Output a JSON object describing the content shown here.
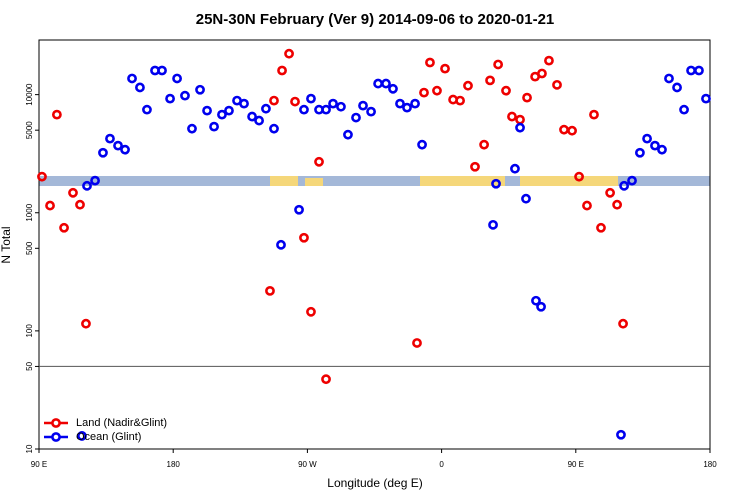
{
  "chart_data": {
    "type": "scatter",
    "title": "25N-30N February (Ver 9)   2014-09-06 to 2020-01-21",
    "x_label": "Longitude (deg E)",
    "y_label": "N Total",
    "log_y": true,
    "legend": "lower left",
    "hline": 50,
    "xlim": [
      90,
      540
    ],
    "ylim": [
      10,
      29000
    ],
    "xticks": [
      {
        "value": 90,
        "label": "90 E"
      },
      180,
      {
        "value": 270,
        "label": "90 W"
      },
      {
        "value": 360,
        "label": "0"
      },
      {
        "value": 450,
        "label": "90 E"
      },
      {
        "value": 540,
        "label": "180"
      }
    ],
    "yticks": [
      10,
      50,
      100,
      500,
      1000,
      5000,
      10000
    ],
    "series": [
      {
        "name": "Land (Nadir&Glint)",
        "color": "#ee0000",
        "x": [
          92,
          97.4,
          102,
          106.8,
          112.8,
          117.5,
          121.5,
          244.9,
          247.6,
          253,
          257.7,
          261.7,
          267.7,
          272.4,
          277.8,
          282.5,
          343.5,
          348.2,
          352.2,
          356.9,
          362.3,
          367.7,
          372.4,
          377.7,
          382.4,
          388.5,
          392.5,
          397.9,
          403.2,
          407.2,
          412.6,
          417.3,
          422.7,
          427.3,
          432,
          437.4,
          442.1,
          447.5,
          452.2,
          457.5,
          462.2,
          466.9,
          473,
          477.7,
          481.7
        ],
        "values": [
          2020,
          1150,
          6770,
          746,
          1475,
          1170,
          115,
          218,
          8900,
          16000,
          22200,
          8730,
          614,
          145,
          2700,
          39,
          79,
          10400,
          18700,
          10800,
          16600,
          9080,
          8900,
          11900,
          2450,
          3770,
          13200,
          18000,
          10800,
          6520,
          6140,
          9430,
          14200,
          15100,
          19400,
          12100,
          5050,
          4950,
          2020,
          1150,
          6770,
          746,
          1475,
          1170,
          115
        ]
      },
      {
        "name": "Ocean (Glint)",
        "color": "#0000ee",
        "x": [
          118.8,
          122.2,
          127.6,
          132.9,
          137.6,
          143,
          147.7,
          152.4,
          157.7,
          162.4,
          167.8,
          172.5,
          177.9,
          182.6,
          187.9,
          192.6,
          198,
          202.7,
          207.4,
          212.7,
          217.4,
          222.8,
          227.5,
          232.9,
          237.6,
          242.2,
          247.6,
          252.3,
          264.4,
          272.4,
          267.7,
          277.8,
          282.5,
          287.2,
          292.5,
          297.2,
          302.6,
          307.3,
          312.7,
          317.4,
          322.7,
          327.4,
          332.1,
          336.8,
          342.2,
          346.9,
          394.5,
          396.5,
          409.2,
          412.6,
          416.6,
          423.3,
          426.7,
          480.3,
          482.4,
          487.7,
          493,
          497.8,
          503.1,
          507.8,
          512.5,
          517.9,
          522.6,
          527.3,
          532.6,
          537.3
        ],
        "values": [
          12.9,
          1690,
          1870,
          3220,
          4240,
          3700,
          3420,
          13700,
          11500,
          7460,
          16000,
          16000,
          9250,
          13700,
          9800,
          5150,
          11000,
          7320,
          5360,
          6770,
          7320,
          8900,
          8390,
          6520,
          6030,
          7600,
          5150,
          535,
          1060,
          9250,
          7460,
          7460,
          7460,
          8390,
          7900,
          4580,
          6390,
          8070,
          7180,
          12400,
          12400,
          11200,
          8390,
          7760,
          8390,
          3770,
          790,
          1760,
          2360,
          5250,
          1315,
          180,
          160,
          13.2,
          1690,
          1870,
          3220,
          4240,
          3700,
          3420,
          13700,
          11500,
          7460,
          16000,
          16000,
          9250
        ]
      }
    ]
  }
}
